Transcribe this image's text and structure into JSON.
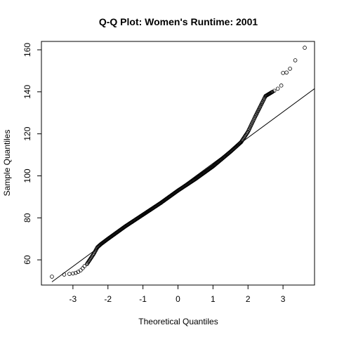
{
  "chart_data": {
    "type": "scatter",
    "title": "Q-Q Plot: Women's Runtime:  2001",
    "xlabel": "Theoretical Quantiles",
    "ylabel": "Sample Quantiles",
    "xlim": [
      -3.9,
      3.9
    ],
    "ylim": [
      48,
      164
    ],
    "x_ticks": [
      -3,
      -2,
      -1,
      0,
      1,
      2,
      3
    ],
    "y_ticks": [
      60,
      80,
      100,
      120,
      140,
      160
    ],
    "grid": false,
    "legend": "none",
    "reference_line": {
      "points": [
        [
          -3.6,
          49.5
        ],
        [
          3.9,
          141.5
        ]
      ]
    },
    "curve_knots": [
      [
        -2.6,
        58
      ],
      [
        -2.4,
        63
      ],
      [
        -2.3,
        66
      ],
      [
        -2.2,
        67.5
      ],
      [
        -2.0,
        70
      ],
      [
        -1.5,
        76
      ],
      [
        -1.0,
        81.5
      ],
      [
        -0.5,
        87
      ],
      [
        0.0,
        93
      ],
      [
        0.5,
        98.5
      ],
      [
        1.0,
        104.5
      ],
      [
        1.5,
        111.5
      ],
      [
        1.8,
        116
      ],
      [
        2.0,
        121
      ],
      [
        2.2,
        128
      ],
      [
        2.5,
        138
      ],
      [
        2.7,
        140
      ]
    ],
    "extreme_points": [
      [
        -3.6,
        52.0
      ],
      [
        -3.25,
        53.0
      ],
      [
        -3.1,
        53.3
      ],
      [
        -3.0,
        53.5
      ],
      [
        -2.92,
        53.8
      ],
      [
        -2.85,
        54.3
      ],
      [
        -2.78,
        55.0
      ],
      [
        -2.72,
        56.0
      ],
      [
        -2.67,
        57.0
      ],
      [
        2.75,
        140.5
      ],
      [
        2.85,
        141.5
      ],
      [
        2.95,
        143.0
      ],
      [
        3.0,
        149.0
      ],
      [
        3.1,
        149.2
      ],
      [
        3.2,
        151.0
      ],
      [
        3.35,
        155.0
      ],
      [
        3.62,
        161.0
      ]
    ]
  }
}
